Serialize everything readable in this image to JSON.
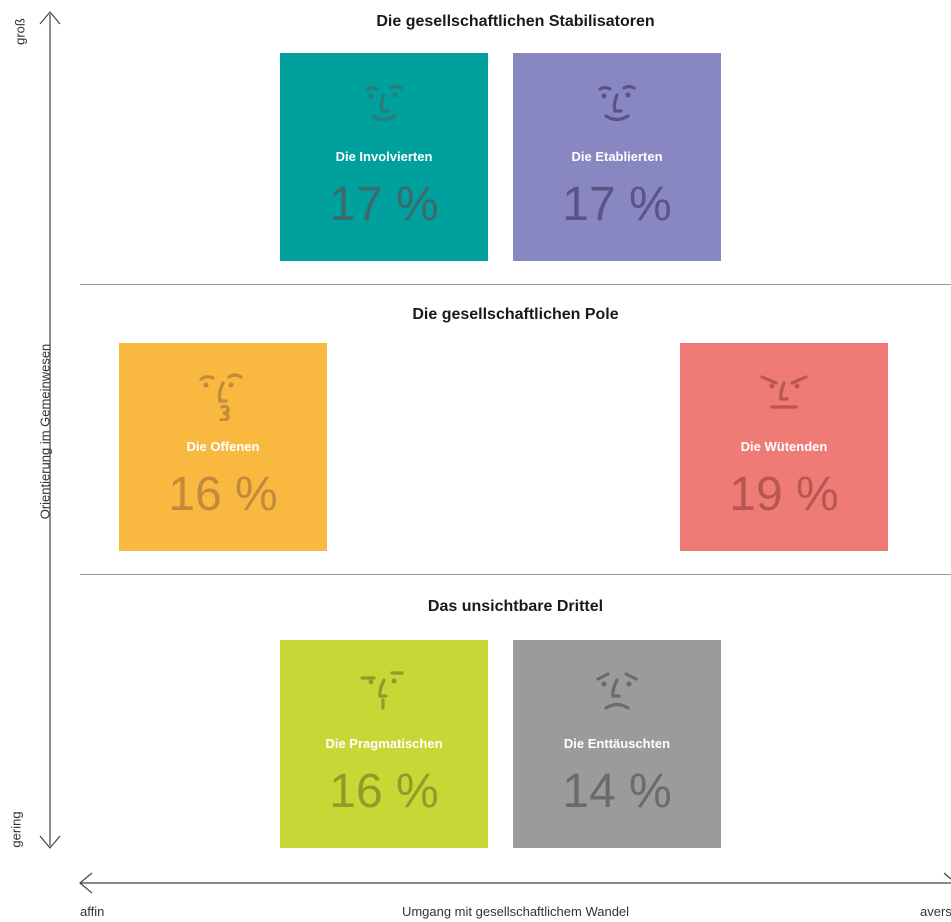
{
  "sections": {
    "top": "Die gesellschaftlichen Stabilisatoren",
    "middle": "Die gesellschaftlichen Pole",
    "bottom": "Das unsichtbare Drittel"
  },
  "axes": {
    "y_title": "Orientierung im Gemeinwesen",
    "y_high": "groß",
    "y_low": "gering",
    "x_title": "Umgang mit gesellschaftlichem Wandel",
    "x_left": "affin",
    "x_right": "avers"
  },
  "groups": [
    {
      "name": "Die Involvierten",
      "value": "17 %",
      "color": "#00a09e",
      "text_color": "#3b6b6d",
      "face": "happy"
    },
    {
      "name": "Die Etablierten",
      "value": "17 %",
      "color": "#8987c1",
      "text_color": "#5a5585",
      "face": "happy"
    },
    {
      "name": "Die Offenen",
      "value": "16 %",
      "color": "#f9b940",
      "text_color": "#c28a3a",
      "face": "curious"
    },
    {
      "name": "Die Wütenden",
      "value": "19 %",
      "color": "#ee7b76",
      "text_color": "#b85650",
      "face": "angry"
    },
    {
      "name": "Die Pragmatischen",
      "value": "16 %",
      "color": "#c8d636",
      "text_color": "#919b2a",
      "face": "neutral"
    },
    {
      "name": "Die Enttäuschten",
      "value": "14 %",
      "color": "#9b9b99",
      "text_color": "#6b6b69",
      "face": "sad"
    }
  ]
}
